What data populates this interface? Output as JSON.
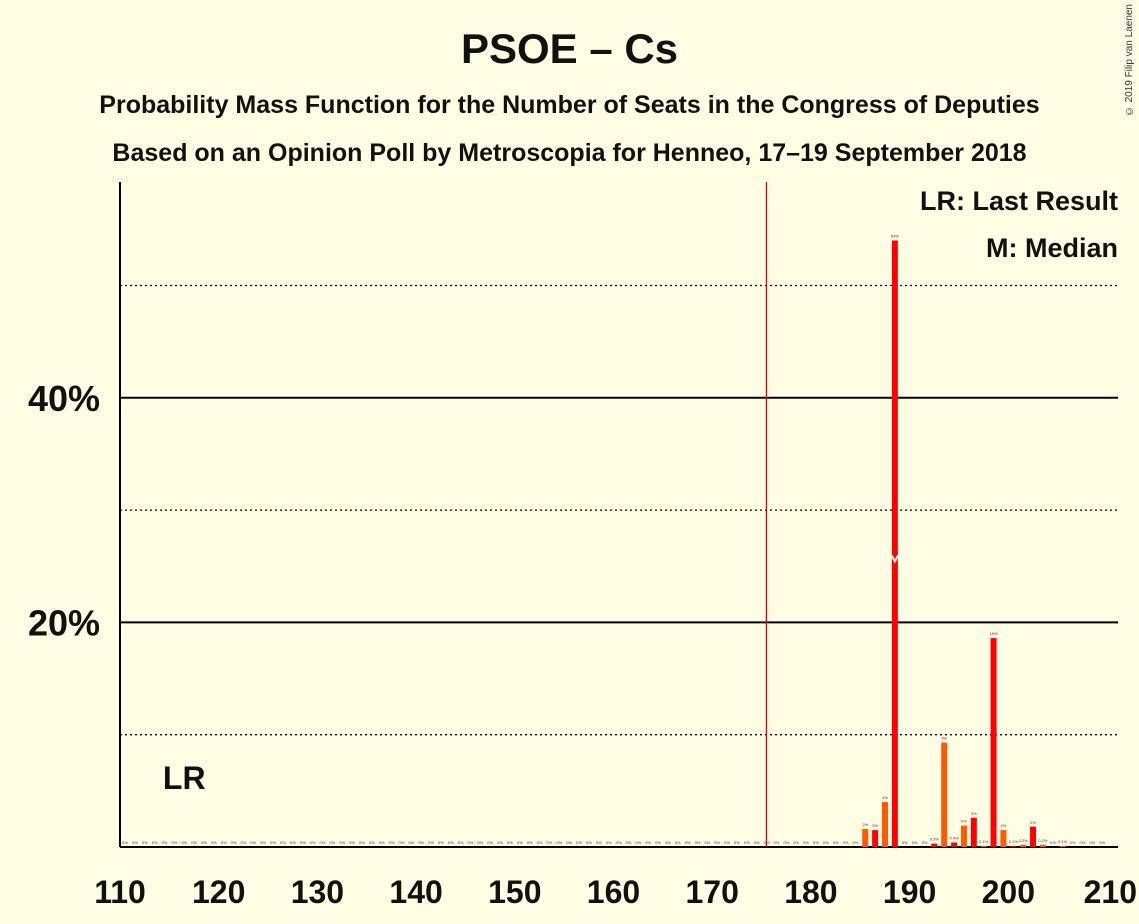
{
  "header": {
    "title": "PSOE – Cs",
    "subtitle1": "Probability Mass Function for the Number of Seats in the Congress of Deputies",
    "subtitle2": "Based on an Opinion Poll by Metroscopia for Henneo, 17–19 September 2018",
    "copyright": "© 2019 Filip van Laenen"
  },
  "legend": {
    "lr": "LR: Last Result",
    "m": "M: Median"
  },
  "markers": {
    "lr_label": "LR",
    "median_label": "M",
    "last_result_seats": 116,
    "median_seats": 188,
    "majority_seats": 176
  },
  "colors": {
    "background": "#FFFEE5",
    "bar_red": "#FF0000",
    "bar_orange": "#FF5A00",
    "majority_line": "#E00000",
    "axis": "#000000"
  },
  "chart_data": {
    "type": "bar",
    "title": "PSOE – Cs",
    "xlabel": "",
    "ylabel": "",
    "xlim": [
      110,
      210
    ],
    "ylim": [
      0,
      59
    ],
    "x_ticks": [
      110,
      120,
      130,
      140,
      150,
      160,
      170,
      180,
      190,
      200,
      210
    ],
    "y_ticks_labeled": [
      {
        "value": 20,
        "label": "20%"
      },
      {
        "value": 40,
        "label": "40%"
      }
    ],
    "y_gridlines_solid": [
      20,
      40
    ],
    "y_gridlines_dotted": [
      10,
      30,
      50
    ],
    "legend_position": "top-right",
    "bars": [
      {
        "seats": 185,
        "value": 1.6,
        "label": "2%"
      },
      {
        "seats": 186,
        "value": 1.5,
        "label": "2%"
      },
      {
        "seats": 187,
        "value": 4.0,
        "label": "4%"
      },
      {
        "seats": 188,
        "value": 54.0,
        "label": "54%"
      },
      {
        "seats": 189,
        "value": 0,
        "label": "0%"
      },
      {
        "seats": 190,
        "value": 0,
        "label": "0%"
      },
      {
        "seats": 191,
        "value": 0,
        "label": "0%"
      },
      {
        "seats": 192,
        "value": 0.3,
        "label": "0.3%"
      },
      {
        "seats": 193,
        "value": 9.3,
        "label": "9%"
      },
      {
        "seats": 194,
        "value": 0.4,
        "label": "0.4%"
      },
      {
        "seats": 195,
        "value": 1.9,
        "label": "2%"
      },
      {
        "seats": 196,
        "value": 2.6,
        "label": "3%"
      },
      {
        "seats": 197,
        "value": 0.1,
        "label": "0.1%"
      },
      {
        "seats": 198,
        "value": 18.6,
        "label": "19%"
      },
      {
        "seats": 199,
        "value": 1.5,
        "label": "2%"
      },
      {
        "seats": 200,
        "value": 0.1,
        "label": "0.1%"
      },
      {
        "seats": 201,
        "value": 0.2,
        "label": "0.2%"
      },
      {
        "seats": 202,
        "value": 1.8,
        "label": "2%"
      },
      {
        "seats": 203,
        "value": 0.2,
        "label": "0.2%"
      },
      {
        "seats": 204,
        "value": 0,
        "label": "0%"
      },
      {
        "seats": 205,
        "value": 0.1,
        "label": "0.1%"
      },
      {
        "seats": 206,
        "value": 0,
        "label": "0%"
      },
      {
        "seats": 207,
        "value": 0,
        "label": "0%"
      },
      {
        "seats": 208,
        "value": 0,
        "label": "0%"
      },
      {
        "seats": 209,
        "value": 0,
        "label": "0%"
      }
    ],
    "zero_label": "0%"
  }
}
